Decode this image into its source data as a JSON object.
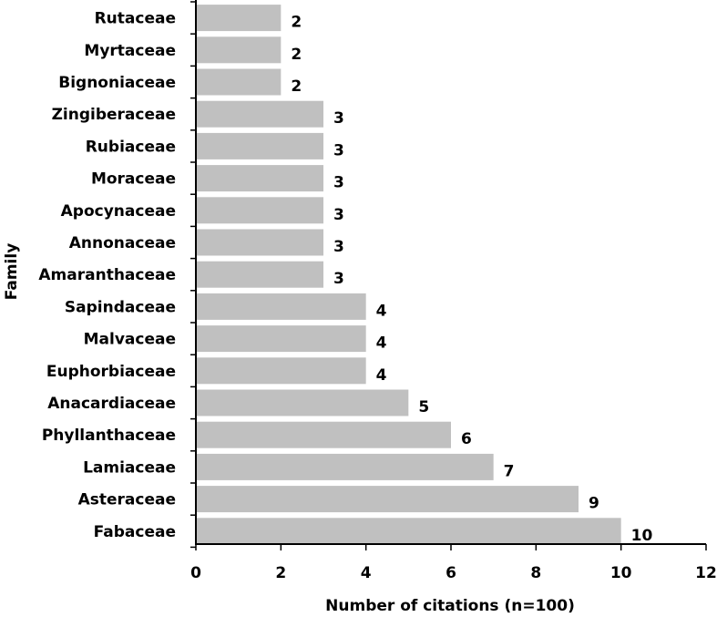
{
  "chart_data": {
    "type": "bar",
    "orientation": "horizontal",
    "categories": [
      "Rutaceae",
      "Myrtaceae",
      "Bignoniaceae",
      "Zingiberaceae",
      "Rubiaceae",
      "Moraceae",
      "Apocynaceae",
      "Annonaceae",
      "Amaranthaceae",
      "Sapindaceae",
      "Malvaceae",
      "Euphorbiaceae",
      "Anacardiaceae",
      "Phyllanthaceae",
      "Lamiaceae",
      "Asteraceae",
      "Fabaceae"
    ],
    "values": [
      2,
      2,
      2,
      3,
      3,
      3,
      3,
      3,
      3,
      4,
      4,
      4,
      5,
      6,
      7,
      9,
      10
    ],
    "value_labels": [
      "2",
      "2",
      "2",
      "3",
      "3",
      "3",
      "3",
      "3",
      "3",
      "4",
      "4",
      "4",
      "5",
      "6",
      "7",
      "9",
      "10"
    ],
    "xlabel": "Number of citations (n=100)",
    "ylabel": "Family",
    "xlim": [
      0,
      12
    ],
    "x_ticks": [
      0,
      2,
      4,
      6,
      8,
      10,
      12
    ],
    "x_tick_labels": [
      "0",
      "2",
      "4",
      "6",
      "8",
      "10",
      "12"
    ],
    "grid": false,
    "bar_color": "#c0c0c0",
    "axis_color": "#000000"
  }
}
